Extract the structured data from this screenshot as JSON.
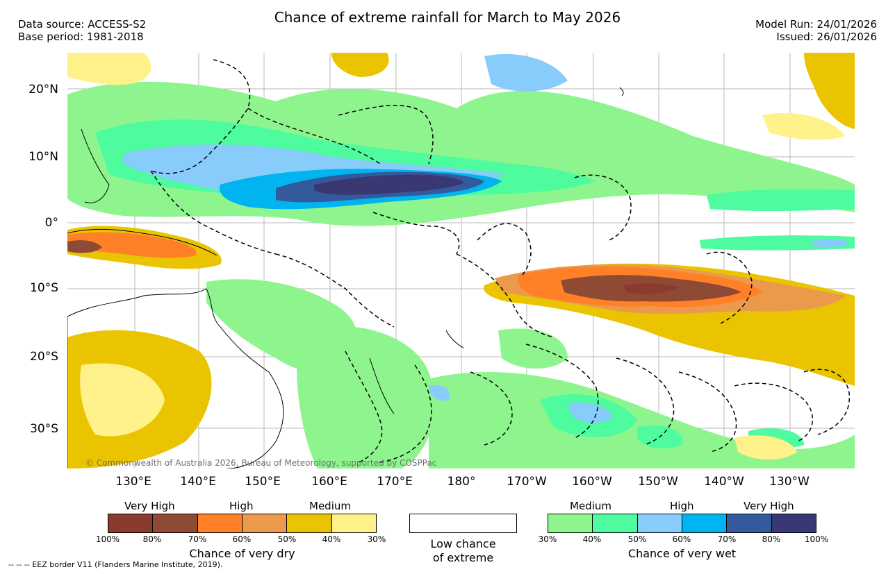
{
  "header": {
    "title": "Chance of extreme rainfall for March to May 2026",
    "data_source": "Data source: ACCESS-S2",
    "base_period": "Base period: 1981-2018",
    "model_run": "Model Run: 24/01/2026",
    "issued": "Issued: 26/01/2026"
  },
  "map": {
    "lat_labels": [
      "20°N",
      "10°N",
      "0°",
      "10°S",
      "20°S",
      "30°S"
    ],
    "lon_labels": [
      "130°E",
      "140°E",
      "150°E",
      "160°E",
      "170°E",
      "180°",
      "170°W",
      "160°W",
      "150°W",
      "140°W",
      "130°W"
    ],
    "copyright": "© Commonwealth of Australia 2026, Bureau of Meteorology, supported by COSPPac"
  },
  "legend_dry": {
    "title": "Chance of very dry",
    "categories": [
      "Very High",
      "High",
      "Medium"
    ],
    "colors": [
      "#8a3b2e",
      "#8e4a34",
      "#ff8026",
      "#ea9a4a",
      "#eac400",
      "#fff28a"
    ],
    "ticks": [
      "100%",
      "80%",
      "70%",
      "60%",
      "50%",
      "40%",
      "30%"
    ]
  },
  "legend_low": {
    "line1": "Low chance",
    "line2": "of extreme"
  },
  "legend_wet": {
    "title": "Chance of very wet",
    "categories": [
      "Medium",
      "High",
      "Very High"
    ],
    "colors": [
      "#8ef58e",
      "#4efb9e",
      "#88ccfb",
      "#00b4ef",
      "#335a9c",
      "#3a3873"
    ],
    "ticks": [
      "30%",
      "40%",
      "50%",
      "60%",
      "70%",
      "80%",
      "100%"
    ]
  },
  "footer": {
    "eez": "--  --  -- EEZ border V11 (Flanders Marine Institute, 2019)."
  }
}
